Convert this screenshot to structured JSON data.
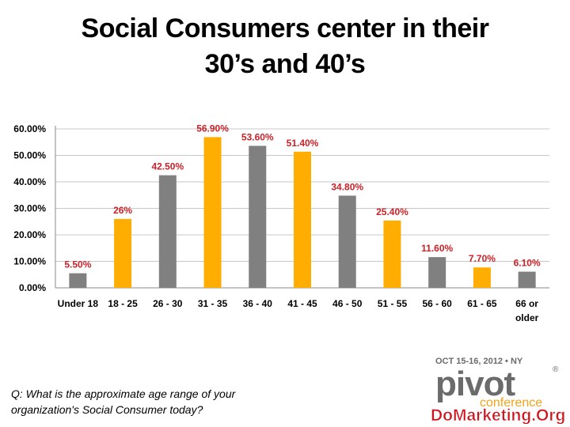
{
  "title": {
    "line1": "Social Consumers center in their",
    "line2": "30’s and 40’s"
  },
  "question": {
    "line1": "Q: What is the approximate age range of your",
    "line2": "organization's Social Consumer today?"
  },
  "logo": {
    "date": "OCT 15-16, 2012 • NY",
    "registered": "®",
    "brand": "pivot",
    "sub": "conference",
    "site": "DoMarketing.Org",
    "color_gray": "#6b6b6b",
    "color_orange": "#f4a21a",
    "color_red": "#d0121b"
  },
  "chart_data": {
    "type": "bar",
    "categories": [
      "Under 18",
      "18 - 25",
      "26 - 30",
      "31 - 35",
      "36 - 40",
      "41 - 45",
      "46 - 50",
      "51 - 55",
      "56 - 60",
      "61 - 65",
      "66 or\nolder"
    ],
    "values": [
      5.5,
      26,
      42.5,
      56.9,
      53.6,
      51.4,
      34.8,
      25.4,
      11.6,
      7.7,
      6.1
    ],
    "data_labels": [
      "5.50%",
      "26%",
      "42.50%",
      "56.90%",
      "53.60%",
      "51.40%",
      "34.80%",
      "25.40%",
      "11.60%",
      "7.70%",
      "6.10%"
    ],
    "bar_colors": [
      "#808080",
      "#ffad00",
      "#808080",
      "#ffad00",
      "#808080",
      "#ffad00",
      "#808080",
      "#ffad00",
      "#808080",
      "#ffad00",
      "#808080"
    ],
    "yticks": [
      "0.00%",
      "10.00%",
      "20.00%",
      "30.00%",
      "40.00%",
      "50.00%",
      "60.00%"
    ],
    "ylim": [
      0,
      60
    ],
    "grid": true,
    "label_color": "#cc2127",
    "xlabel": "",
    "ylabel": ""
  }
}
